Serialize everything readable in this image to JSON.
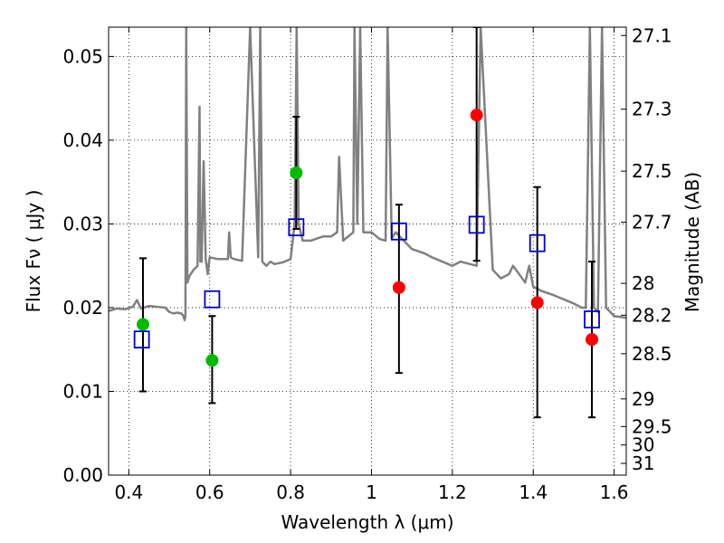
{
  "chart_data": {
    "type": "scatter",
    "xlabel": "Wavelength  λ (μm)",
    "ylabel": "Flux  Fν  ( μJy )",
    "ylabel2": "Magnitude (AB)",
    "xlim": [
      0.35,
      1.63
    ],
    "ylim": [
      0.0,
      0.0535
    ],
    "grid": true,
    "x_ticks": [
      0.4,
      0.6,
      0.8,
      1.0,
      1.2,
      1.4,
      1.6
    ],
    "x_tick_labels": [
      "0.4",
      "0.6",
      "0.8",
      "1",
      "1.2",
      "1.4",
      "1.6"
    ],
    "y_ticks": [
      0.0,
      0.01,
      0.02,
      0.03,
      0.04,
      0.05
    ],
    "y_tick_labels": [
      "0.00",
      "0.01",
      "0.02",
      "0.03",
      "0.04",
      "0.05"
    ],
    "magnitude_ticks": [
      {
        "label": "27.1",
        "flux": 0.0525
      },
      {
        "label": "27.3",
        "flux": 0.0437
      },
      {
        "label": "27.5",
        "flux": 0.0363
      },
      {
        "label": "27.7",
        "flux": 0.0302
      },
      {
        "label": "28",
        "flux": 0.0229
      },
      {
        "label": "28.2",
        "flux": 0.0191
      },
      {
        "label": "28.5",
        "flux": 0.0145
      },
      {
        "label": "29",
        "flux": 0.0091
      },
      {
        "label": "29.5",
        "flux": 0.0058
      },
      {
        "label": "30",
        "flux": 0.0036
      },
      {
        "label": "31",
        "flux": 0.0014
      }
    ],
    "series": [
      {
        "name": "model-spectrum",
        "kind": "line",
        "color": "#808080",
        "x": [
          0.35,
          0.37,
          0.39,
          0.41,
          0.42,
          0.43,
          0.45,
          0.47,
          0.49,
          0.5,
          0.51,
          0.52,
          0.53,
          0.535,
          0.538,
          0.54,
          0.542,
          0.545,
          0.55,
          0.56,
          0.57,
          0.575,
          0.577,
          0.58,
          0.585,
          0.59,
          0.595,
          0.6,
          0.62,
          0.645,
          0.648,
          0.652,
          0.66,
          0.68,
          0.7,
          0.72,
          0.725,
          0.73,
          0.74,
          0.75,
          0.76,
          0.78,
          0.8,
          0.81,
          0.815,
          0.82,
          0.83,
          0.85,
          0.88,
          0.9,
          0.915,
          0.92,
          0.93,
          0.955,
          0.958,
          0.965,
          0.972,
          0.98,
          1.0,
          1.02,
          1.035,
          1.04,
          1.05,
          1.06,
          1.09,
          1.1,
          1.13,
          1.15,
          1.2,
          1.22,
          1.26,
          1.27,
          1.3,
          1.32,
          1.34,
          1.35,
          1.38,
          1.39,
          1.4,
          1.42,
          1.45,
          1.5,
          1.52,
          1.53,
          1.54,
          1.55,
          1.56,
          1.57,
          1.58,
          1.6,
          1.63
        ],
        "y": [
          0.0196,
          0.0199,
          0.0198,
          0.0201,
          0.0209,
          0.0199,
          0.0202,
          0.0201,
          0.02,
          0.0195,
          0.0193,
          0.0194,
          0.0193,
          0.019,
          0.0185,
          0.019,
          0.0535,
          0.023,
          0.0238,
          0.0245,
          0.025,
          0.044,
          0.0255,
          0.0255,
          0.0375,
          0.0258,
          0.024,
          0.026,
          0.0258,
          0.0258,
          0.029,
          0.026,
          0.0258,
          0.0256,
          0.0535,
          0.026,
          0.0535,
          0.0255,
          0.025,
          0.0255,
          0.0252,
          0.0254,
          0.0258,
          0.03,
          0.0535,
          0.03,
          0.028,
          0.028,
          0.0285,
          0.0285,
          0.029,
          0.038,
          0.028,
          0.029,
          0.0535,
          0.03,
          0.0535,
          0.029,
          0.029,
          0.0282,
          0.028,
          0.0535,
          0.0283,
          0.029,
          0.0275,
          0.027,
          0.0265,
          0.026,
          0.025,
          0.0255,
          0.025,
          0.0535,
          0.0245,
          0.0235,
          0.024,
          0.025,
          0.023,
          0.025,
          0.0225,
          0.022,
          0.0215,
          0.0205,
          0.02,
          0.02,
          0.0535,
          0.02,
          0.0195,
          0.0535,
          0.02,
          0.019,
          0.0188
        ]
      },
      {
        "name": "model-photometry",
        "kind": "marker",
        "marker": "open-square",
        "color": "#0000cc",
        "points": [
          {
            "x": 0.432,
            "y": 0.0162
          },
          {
            "x": 0.606,
            "y": 0.021
          },
          {
            "x": 0.814,
            "y": 0.0296
          },
          {
            "x": 1.068,
            "y": 0.0291
          },
          {
            "x": 1.26,
            "y": 0.0299
          },
          {
            "x": 1.41,
            "y": 0.0277
          },
          {
            "x": 1.545,
            "y": 0.0186
          }
        ]
      },
      {
        "name": "observed-green",
        "kind": "marker",
        "marker": "filled-circle",
        "color": "#00bb00",
        "points": [
          {
            "x": 0.435,
            "y": 0.018,
            "yerr_low": 0.01,
            "yerr_high": 0.0259
          },
          {
            "x": 0.606,
            "y": 0.0137,
            "yerr_low": 0.0086,
            "yerr_high": 0.019
          },
          {
            "x": 0.814,
            "y": 0.0361,
            "yerr_low": 0.0294,
            "yerr_high": 0.0428
          }
        ]
      },
      {
        "name": "observed-red",
        "kind": "marker",
        "marker": "filled-circle",
        "color": "#ff0000",
        "points": [
          {
            "x": 1.068,
            "y": 0.0224,
            "yerr_low": 0.0122,
            "yerr_high": 0.0323
          },
          {
            "x": 1.26,
            "y": 0.043,
            "yerr_low": 0.0256,
            "yerr_high": 0.0535
          },
          {
            "x": 1.41,
            "y": 0.0206,
            "yerr_low": 0.0069,
            "yerr_high": 0.0344
          },
          {
            "x": 1.545,
            "y": 0.0162,
            "yerr_low": 0.0069,
            "yerr_high": 0.0255
          }
        ]
      }
    ]
  }
}
